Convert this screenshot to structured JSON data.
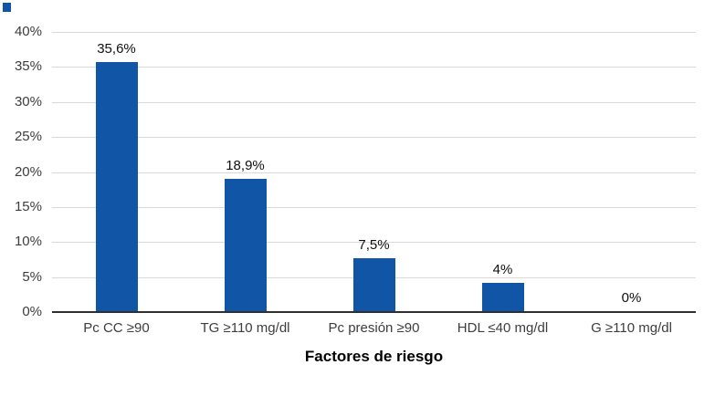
{
  "chart_data": {
    "type": "bar",
    "title": "",
    "xlabel": "Factores de riesgo",
    "ylabel": "",
    "categories": [
      "Pc CC ≥90",
      "TG ≥110 mg/dl",
      "Pc presión ≥90",
      "HDL ≤40 mg/dl",
      "G ≥110 mg/dl"
    ],
    "values": [
      35.6,
      18.9,
      7.5,
      4,
      0
    ],
    "bar_labels": [
      "35,6%",
      "18,9%",
      "7,5%",
      "4%",
      "0%"
    ],
    "ylim": [
      0,
      40
    ],
    "ytick_step": 5,
    "ytick_labels": [
      "0%",
      "5%",
      "10%",
      "15%",
      "20%",
      "25%",
      "30%",
      "35%",
      "40%"
    ],
    "grid": true,
    "legend_position": "none",
    "colors": {
      "bar": "#1156a6",
      "corner_marker": "#1156a6",
      "gridline": "#d9d9d9",
      "axis_line": "#2f2f2f",
      "tick_label": "#3d3d3d",
      "category_label": "#3d3d3d",
      "data_label": "#0f0f0f",
      "background": "#ffffff"
    }
  }
}
